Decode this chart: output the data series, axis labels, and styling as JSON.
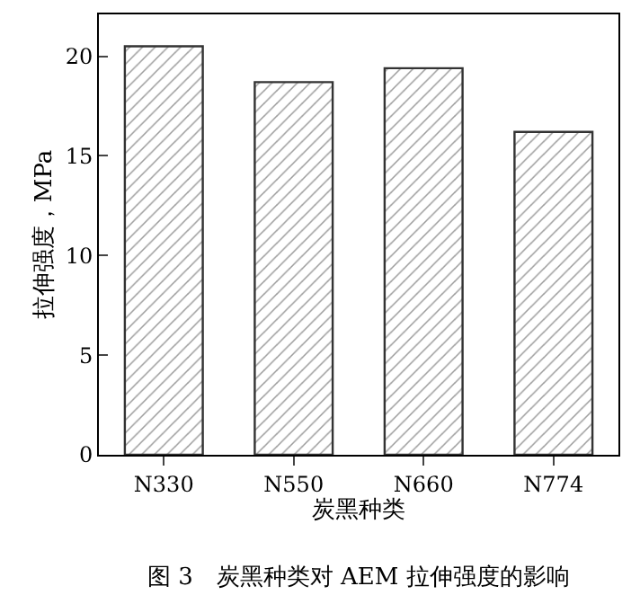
{
  "chart_data": {
    "type": "bar",
    "title": "图 3　炭黑种类对 AEM 拉伸强度的影响",
    "xlabel": "炭黑种类",
    "ylabel": "拉伸强度，MPa",
    "categories": [
      "N330",
      "N550",
      "N660",
      "N774"
    ],
    "values": [
      20.5,
      18.7,
      19.4,
      16.2
    ],
    "color": "#333333",
    "ylim": [
      0,
      22.1
    ],
    "yticks": [
      0,
      5,
      10,
      15,
      20
    ]
  }
}
